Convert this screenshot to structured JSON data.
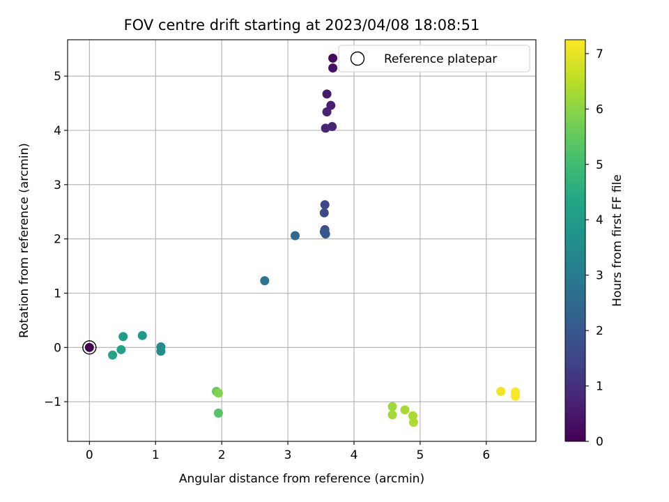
{
  "chart_data": {
    "type": "scatter",
    "title": "FOV centre drift starting at 2023/04/08 18:08:51",
    "xlabel": "Angular distance from reference (arcmin)",
    "ylabel": "Rotation from reference (arcmin)",
    "xlim": [
      -0.33,
      6.75
    ],
    "ylim": [
      -1.73,
      5.67
    ],
    "x_ticks": [
      0,
      1,
      2,
      3,
      4,
      5,
      6
    ],
    "y_ticks": [
      -1,
      0,
      1,
      2,
      3,
      4,
      5
    ],
    "x_tick_labels": [
      "0",
      "1",
      "2",
      "3",
      "4",
      "5",
      "6"
    ],
    "y_tick_labels": [
      "−1",
      "0",
      "1",
      "2",
      "3",
      "4",
      "5"
    ],
    "grid": true,
    "colormap": "viridis",
    "colorbar": {
      "label": "Hours from first FF file",
      "range": [
        0,
        7.25
      ],
      "ticks": [
        0,
        1,
        2,
        3,
        4,
        5,
        6,
        7
      ],
      "tick_labels": [
        "0",
        "1",
        "2",
        "3",
        "4",
        "5",
        "6",
        "7"
      ]
    },
    "legend": {
      "placement": "top-right",
      "entries": [
        {
          "label": "Reference platepar",
          "marker": "open-circle"
        }
      ]
    },
    "reference_point": {
      "x": 0,
      "y": 0
    },
    "series": [
      {
        "points": [
          {
            "x": 0.0,
            "y": 0.0,
            "t": 0.0
          },
          {
            "x": 3.68,
            "y": 5.33,
            "t": 0.2
          },
          {
            "x": 3.68,
            "y": 5.15,
            "t": 0.3
          },
          {
            "x": 3.59,
            "y": 4.67,
            "t": 0.55
          },
          {
            "x": 3.65,
            "y": 4.46,
            "t": 0.65
          },
          {
            "x": 3.59,
            "y": 4.34,
            "t": 0.7
          },
          {
            "x": 3.57,
            "y": 4.04,
            "t": 0.75
          },
          {
            "x": 3.67,
            "y": 4.07,
            "t": 0.8
          },
          {
            "x": 3.56,
            "y": 2.63,
            "t": 1.5
          },
          {
            "x": 3.55,
            "y": 2.48,
            "t": 1.6
          },
          {
            "x": 3.56,
            "y": 2.17,
            "t": 1.8
          },
          {
            "x": 3.55,
            "y": 2.13,
            "t": 1.9
          },
          {
            "x": 3.57,
            "y": 2.09,
            "t": 2.0
          },
          {
            "x": 3.11,
            "y": 2.06,
            "t": 2.5
          },
          {
            "x": 2.65,
            "y": 1.23,
            "t": 2.85
          },
          {
            "x": 1.08,
            "y": 0.01,
            "t": 3.5
          },
          {
            "x": 1.08,
            "y": -0.07,
            "t": 3.55
          },
          {
            "x": 0.8,
            "y": 0.22,
            "t": 3.9
          },
          {
            "x": 0.51,
            "y": 0.2,
            "t": 4.05
          },
          {
            "x": 0.48,
            "y": -0.04,
            "t": 4.2
          },
          {
            "x": 0.35,
            "y": -0.14,
            "t": 4.3
          },
          {
            "x": 1.95,
            "y": -1.21,
            "t": 5.3
          },
          {
            "x": 1.92,
            "y": -0.81,
            "t": 5.5
          },
          {
            "x": 1.95,
            "y": -0.84,
            "t": 5.9
          },
          {
            "x": 4.58,
            "y": -1.09,
            "t": 6.2
          },
          {
            "x": 4.58,
            "y": -1.24,
            "t": 6.25
          },
          {
            "x": 4.77,
            "y": -1.15,
            "t": 6.3
          },
          {
            "x": 4.89,
            "y": -1.26,
            "t": 6.3
          },
          {
            "x": 4.9,
            "y": -1.38,
            "t": 6.35
          },
          {
            "x": 6.22,
            "y": -0.81,
            "t": 7.1
          },
          {
            "x": 6.44,
            "y": -0.82,
            "t": 7.2
          },
          {
            "x": 6.44,
            "y": -0.9,
            "t": 7.25
          }
        ]
      }
    ]
  }
}
